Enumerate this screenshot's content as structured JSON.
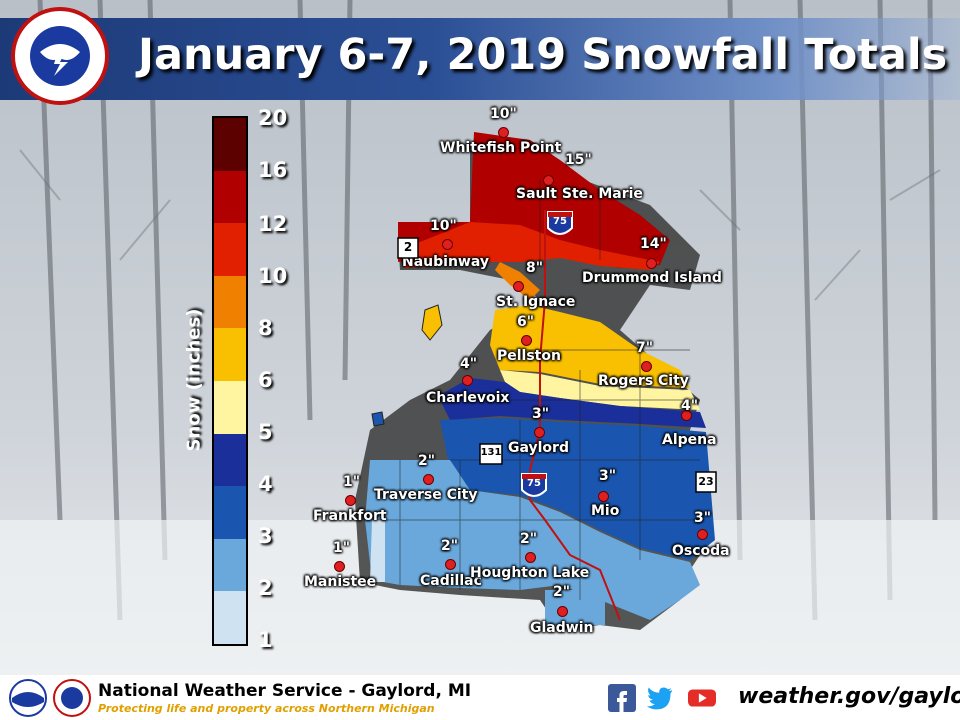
{
  "header": {
    "title": "January 6-7, 2019 Snowfall Totals"
  },
  "legend": {
    "title": "Snow (inches)",
    "ticks": [
      "20",
      "16",
      "12",
      "10",
      "8",
      "6",
      "5",
      "4",
      "3",
      "2",
      "1"
    ],
    "colors": [
      "#5c0000",
      "#b00000",
      "#e02000",
      "#f08000",
      "#f8c000",
      "#fff5a0",
      "#1a2f9a",
      "#1a56b0",
      "#6aa8dc",
      "#cfe2f2"
    ]
  },
  "cities": [
    {
      "name": "Whitefish Point",
      "amount": "10\""
    },
    {
      "name": "Sault Ste. Marie",
      "amount": "15\""
    },
    {
      "name": "Naubinway",
      "amount": "10\""
    },
    {
      "name": "Drummond Island",
      "amount": "14\""
    },
    {
      "name": "St. Ignace",
      "amount": "8\""
    },
    {
      "name": "Pellston",
      "amount": "6\""
    },
    {
      "name": "Rogers City",
      "amount": "7\""
    },
    {
      "name": "Charlevoix",
      "amount": "4\""
    },
    {
      "name": "Alpena",
      "amount": "4\""
    },
    {
      "name": "Gaylord",
      "amount": "3\""
    },
    {
      "name": "Mio",
      "amount": "3\""
    },
    {
      "name": "Traverse City",
      "amount": "2\""
    },
    {
      "name": "Frankfort",
      "amount": "1\""
    },
    {
      "name": "Oscoda",
      "amount": "3\""
    },
    {
      "name": "Manistee",
      "amount": "1\""
    },
    {
      "name": "Cadillac",
      "amount": "2\""
    },
    {
      "name": "Houghton Lake",
      "amount": "2\""
    },
    {
      "name": "Gladwin",
      "amount": "2\""
    }
  ],
  "highways": {
    "i75": "75",
    "us2": "2",
    "us131": "131",
    "us23": "23"
  },
  "footer": {
    "org": "National Weather Service - Gaylord, MI",
    "tagline": "Protecting life and property across Northern Michigan",
    "url": "weather.gov/gaylord",
    "social": [
      "facebook-icon",
      "twitter-icon",
      "youtube-icon"
    ]
  }
}
